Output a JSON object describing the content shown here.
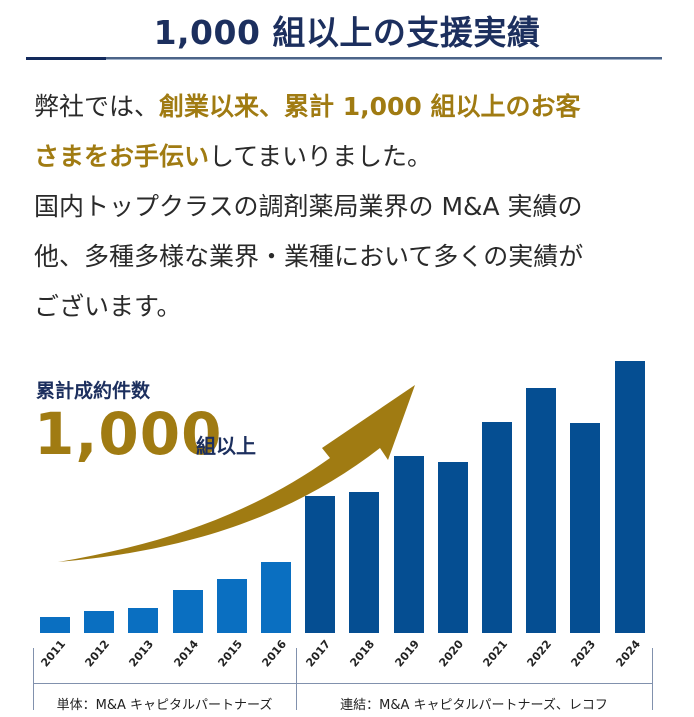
{
  "header": {
    "title": "1,000 組以上の支援実績"
  },
  "intro": {
    "line1_a": "弊社では、",
    "line1_hl": "創業以来、累計 1,000 組以上のお客",
    "line2_hl": "さまをお手伝い",
    "line2_b": "してまいりました。",
    "line3": "国内トップクラスの調剤薬局業界の M&A 実績の",
    "line4": "他、多種多様な業界・業種において多くの実績が",
    "line5": "ございます。"
  },
  "chart_data": {
    "type": "bar",
    "title": "累計成約件数",
    "headline_value": "1,000",
    "headline_unit": "組以上",
    "categories": [
      "2011",
      "2012",
      "2013",
      "2014",
      "2015",
      "2016",
      "2017",
      "2018",
      "2019",
      "2020",
      "2021",
      "2022",
      "2023",
      "2024"
    ],
    "series": [
      {
        "name": "単体：M&A キャピタルパートナーズ",
        "color": "#0a6fc1",
        "values": [
          16,
          22,
          25,
          43,
          54,
          71,
          null,
          null,
          null,
          null,
          null,
          null,
          null,
          null
        ]
      },
      {
        "name": "連結：M&A キャピタルパートナーズ、レコフ",
        "color": "#054e92",
        "values": [
          null,
          null,
          null,
          null,
          null,
          null,
          137,
          141,
          177,
          171,
          211,
          245,
          210,
          272
        ]
      }
    ],
    "value_note": "relative bar heights in px (no y-axis shown)",
    "xlabel": "",
    "ylabel": "",
    "grid": false,
    "annotation": "upward gold arrow",
    "accent_color": "#a07b12"
  },
  "segments": {
    "single": "単体：M&A キャピタルパートナーズ",
    "consolidated": "連結：M&A キャピタルパートナーズ、レコフ"
  }
}
